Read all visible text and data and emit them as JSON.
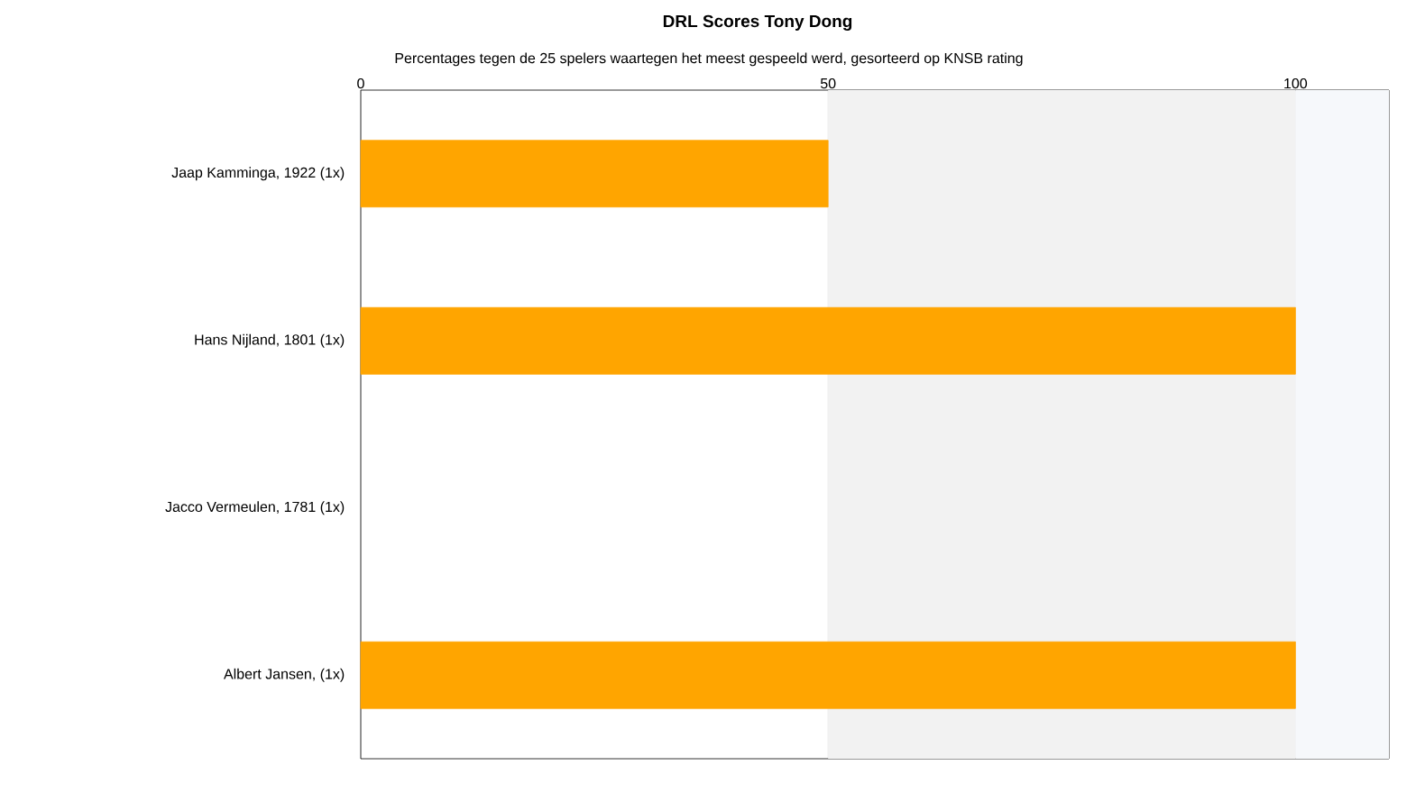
{
  "chart_data": {
    "type": "bar",
    "orientation": "horizontal",
    "title": "DRL Scores Tony Dong",
    "subtitle": "Percentages tegen de 25 spelers waartegen het meest gespeeld werd, gesorteerd op KNSB rating",
    "categories": [
      "Jaap Kamminga, 1922 (1x)",
      "Hans Nijland, 1801 (1x)",
      "Jacco Vermeulen, 1781 (1x)",
      "Albert Jansen,  (1x)"
    ],
    "values": [
      50,
      100,
      0,
      100
    ],
    "color": "#ffa500",
    "xlim": [
      0,
      110
    ],
    "xticks": [
      0,
      50,
      100
    ],
    "grid": "x",
    "bands": [
      {
        "axis": "x",
        "from": 50,
        "to": 100,
        "color": "#f2f2f2"
      },
      {
        "axis": "x",
        "from": 100,
        "to": 110,
        "color": "#f6f8fb"
      }
    ]
  }
}
